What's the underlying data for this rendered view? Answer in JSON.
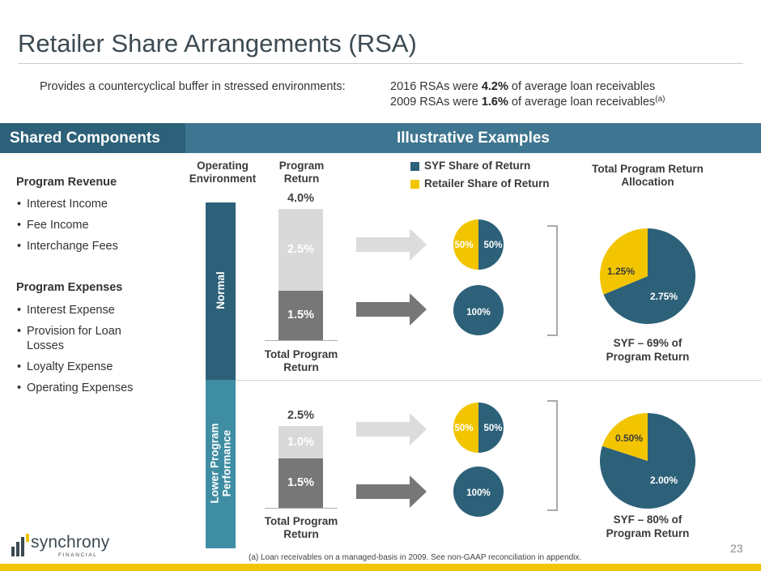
{
  "title": "Retailer Share Arrangements (RSA)",
  "tagline": "Provides a countercyclical buffer in stressed environments:",
  "stats": [
    {
      "pre": "2016 RSAs were ",
      "value": "4.2%",
      "post": " of average loan receivables",
      "sup": ""
    },
    {
      "pre": "2009 RSAs were ",
      "value": "1.6%",
      "post": " of average loan receivables",
      "sup": "(a)"
    }
  ],
  "bands": {
    "left": "Shared Components",
    "right": "Illustrative Examples"
  },
  "shared_components": {
    "revenue_title": "Program Revenue",
    "revenue_items": [
      "Interest Income",
      "Fee Income",
      "Interchange Fees"
    ],
    "expense_title": "Program Expenses",
    "expense_items": [
      "Interest Expense",
      "Provision for Loan Losses",
      "Loyalty Expense",
      "Operating Expenses"
    ]
  },
  "column_headers": {
    "operating_environment": [
      "Operating",
      "Environment"
    ],
    "program_return": [
      "Program",
      "Return"
    ],
    "allocation": [
      "Total Program Return",
      "Allocation"
    ]
  },
  "legend": [
    {
      "label": "SYF Share of Return",
      "color": "#2d6179"
    },
    {
      "label": "Retailer Share of Return",
      "color": "#f2c500"
    }
  ],
  "colors": {
    "syf": "#2d6179",
    "retailer": "#f2c500",
    "bar_dark": "#777777",
    "bar_light": "#d9d9d9",
    "arrow_light": "#dcdcdc",
    "arrow_dark": "#777777",
    "band_normal": "#2d6179",
    "band_lower": "#3e8da3"
  },
  "scenarios": [
    {
      "environment": "Normal",
      "total_label": "4.0%",
      "total_value": 4.0,
      "segments": [
        {
          "label": "1.5%",
          "value": 1.5,
          "type": "dark"
        },
        {
          "label": "2.5%",
          "value": 2.5,
          "type": "light"
        }
      ],
      "bar_footer": [
        "Total Program",
        "Return"
      ],
      "split_pie": {
        "retailer_label": "50%",
        "syf_label": "50%",
        "syf_share": 0.5
      },
      "full_pie": {
        "label": "100%"
      },
      "allocation": {
        "retailer_label": "1.25%",
        "retailer_value": 1.25,
        "syf_label": "2.75%",
        "syf_value": 2.75,
        "caption": [
          "SYF – 69% of",
          "Program Return"
        ]
      }
    },
    {
      "environment": "Lower Program Performance",
      "environment_lines": [
        "Lower Program",
        "Performance"
      ],
      "total_label": "2.5%",
      "total_value": 2.5,
      "segments": [
        {
          "label": "1.5%",
          "value": 1.5,
          "type": "dark"
        },
        {
          "label": "1.0%",
          "value": 1.0,
          "type": "light"
        }
      ],
      "bar_footer": [
        "Total Program",
        "Return"
      ],
      "split_pie": {
        "retailer_label": "50%",
        "syf_label": "50%",
        "syf_share": 0.5
      },
      "full_pie": {
        "label": "100%"
      },
      "allocation": {
        "retailer_label": "0.50%",
        "retailer_value": 0.5,
        "syf_label": "2.00%",
        "syf_value": 2.0,
        "caption": [
          "SYF – 80% of",
          "Program Return"
        ]
      }
    }
  ],
  "logo": {
    "word": "synchrony",
    "sub": "FINANCIAL"
  },
  "page_number": "23",
  "footnote": "(a)  Loan receivables on a managed-basis in 2009. See non-GAAP reconciliation in appendix."
}
